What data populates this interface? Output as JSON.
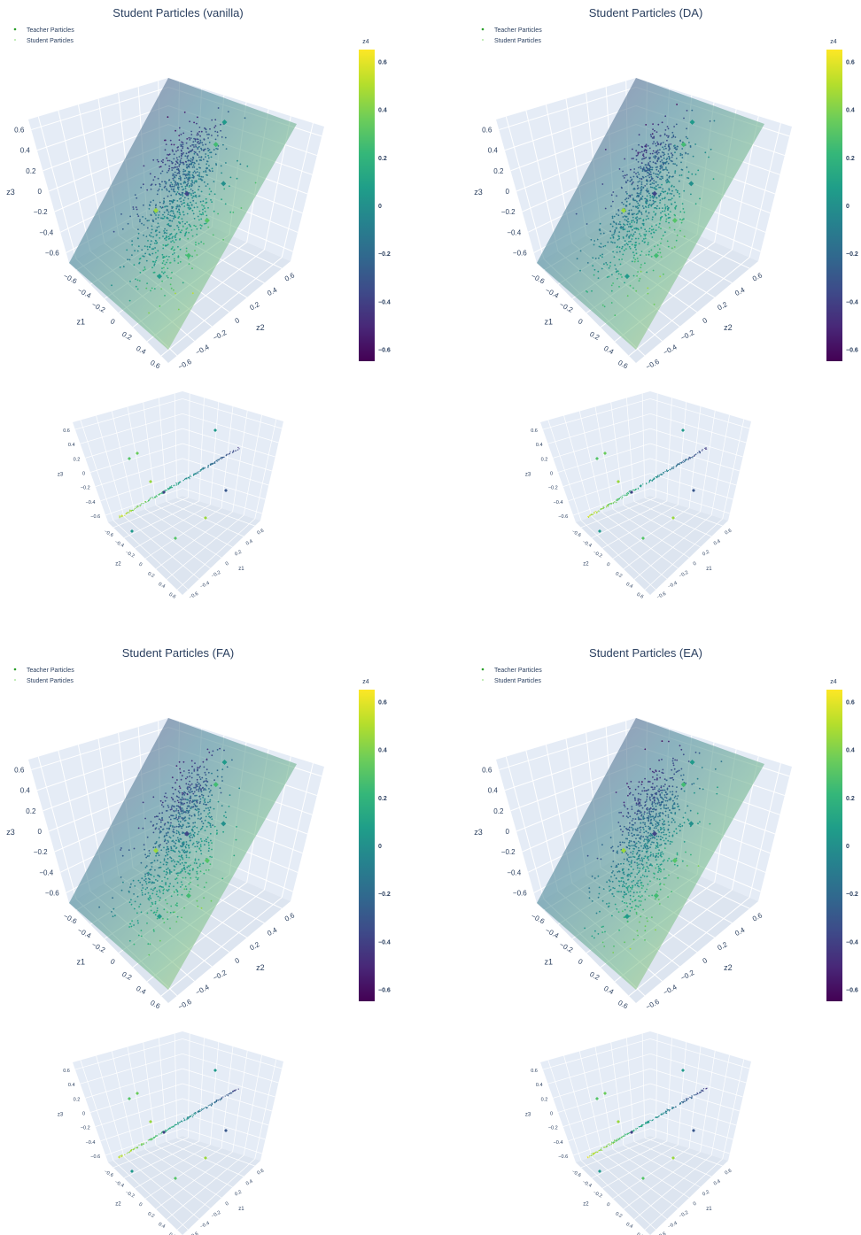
{
  "chart_data": [
    {
      "type": "scatter3d",
      "title": "Student Particles (vanilla)",
      "legend": {
        "placement": "top-left",
        "entries": [
          {
            "name": "Teacher Particles"
          },
          {
            "name": "Student Particles"
          }
        ]
      },
      "main_view": {
        "axes": [
          "z1",
          "z2",
          "z3"
        ],
        "ticks": [
          -0.6,
          -0.4,
          -0.2,
          0,
          0.2,
          0.4,
          0.6
        ],
        "range": [
          -0.6,
          0.6
        ]
      },
      "inset_view": {
        "axes": [
          "z2",
          "z1",
          "z3"
        ],
        "ticks": [
          -0.6,
          -0.4,
          -0.2,
          0,
          0.2,
          0.4,
          0.6
        ],
        "range": [
          -0.6,
          0.6
        ]
      },
      "colorbar": {
        "title": "z4",
        "ticks": [
          -0.6,
          -0.4,
          -0.2,
          0,
          0.2,
          0.4,
          0.6
        ],
        "range": [
          -0.65,
          0.65
        ],
        "colorscale": "viridis"
      },
      "teacher_particles": [
        {
          "z1": -0.28,
          "z2": 0.32,
          "z3": 0.58,
          "z4": 0.05
        },
        {
          "z1": 0.02,
          "z2": 0.55,
          "z3": 0.3,
          "z4": 0.0
        },
        {
          "z1": 0.18,
          "z2": 0.52,
          "z3": 0.05,
          "z4": 0.3
        },
        {
          "z1": -0.45,
          "z2": 0.1,
          "z3": 0.15,
          "z4": 0.25
        },
        {
          "z1": 0.15,
          "z2": 0.3,
          "z3": 0.2,
          "z4": -0.38
        },
        {
          "z1": -0.1,
          "z2": -0.2,
          "z3": -0.35,
          "z4": 0.45
        },
        {
          "z1": 0.42,
          "z2": 0.25,
          "z3": -0.42,
          "z4": 0.05
        },
        {
          "z1": 0.38,
          "z2": 0.5,
          "z3": -0.15,
          "z4": 0.25
        }
      ],
      "student_particle_count": 900,
      "plane": "z3 = z1 + z2"
    },
    {
      "type": "scatter3d",
      "title": "Student Particles (DA)",
      "legend": {
        "placement": "top-left",
        "entries": [
          {
            "name": "Teacher Particles"
          },
          {
            "name": "Student Particles"
          }
        ]
      },
      "main_view": {
        "axes": [
          "z1",
          "z2",
          "z3"
        ],
        "ticks": [
          -0.6,
          -0.4,
          -0.2,
          0,
          0.2,
          0.4,
          0.6
        ],
        "range": [
          -0.6,
          0.6
        ]
      },
      "inset_view": {
        "axes": [
          "z2",
          "z1",
          "z3"
        ],
        "ticks": [
          -0.6,
          -0.4,
          -0.2,
          0,
          0.2,
          0.4,
          0.6
        ],
        "range": [
          -0.6,
          0.6
        ]
      },
      "colorbar": {
        "title": "z4",
        "ticks": [
          -0.6,
          -0.4,
          -0.2,
          0,
          0.2,
          0.4,
          0.6
        ],
        "range": [
          -0.65,
          0.65
        ],
        "colorscale": "viridis"
      },
      "teacher_particles": [
        {
          "z1": -0.28,
          "z2": 0.32,
          "z3": 0.58,
          "z4": 0.05
        },
        {
          "z1": 0.02,
          "z2": 0.55,
          "z3": 0.3,
          "z4": 0.0
        },
        {
          "z1": 0.18,
          "z2": 0.52,
          "z3": 0.05,
          "z4": 0.3
        },
        {
          "z1": -0.45,
          "z2": 0.1,
          "z3": 0.15,
          "z4": 0.25
        },
        {
          "z1": 0.15,
          "z2": 0.3,
          "z3": 0.2,
          "z4": -0.38
        },
        {
          "z1": -0.1,
          "z2": -0.2,
          "z3": -0.35,
          "z4": 0.45
        },
        {
          "z1": 0.42,
          "z2": 0.25,
          "z3": -0.42,
          "z4": 0.05
        },
        {
          "z1": 0.38,
          "z2": 0.5,
          "z3": -0.15,
          "z4": 0.25
        }
      ],
      "student_particle_count": 900,
      "plane": "z3 = z1 + z2"
    },
    {
      "type": "scatter3d",
      "title": "Student Particles (FA)",
      "legend": {
        "placement": "top-left",
        "entries": [
          {
            "name": "Teacher Particles"
          },
          {
            "name": "Student Particles"
          }
        ]
      },
      "main_view": {
        "axes": [
          "z1",
          "z2",
          "z3"
        ],
        "ticks": [
          -0.6,
          -0.4,
          -0.2,
          0,
          0.2,
          0.4,
          0.6
        ],
        "range": [
          -0.6,
          0.6
        ]
      },
      "inset_view": {
        "axes": [
          "z2",
          "z1",
          "z3"
        ],
        "ticks": [
          -0.6,
          -0.4,
          -0.2,
          0,
          0.2,
          0.4,
          0.6
        ],
        "range": [
          -0.6,
          0.6
        ]
      },
      "colorbar": {
        "title": "z4",
        "ticks": [
          -0.6,
          -0.4,
          -0.2,
          0,
          0.2,
          0.4,
          0.6
        ],
        "range": [
          -0.65,
          0.65
        ],
        "colorscale": "viridis"
      },
      "teacher_particles": [
        {
          "z1": -0.28,
          "z2": 0.32,
          "z3": 0.58,
          "z4": 0.05
        },
        {
          "z1": 0.02,
          "z2": 0.55,
          "z3": 0.3,
          "z4": 0.0
        },
        {
          "z1": 0.18,
          "z2": 0.52,
          "z3": 0.05,
          "z4": 0.3
        },
        {
          "z1": -0.45,
          "z2": 0.1,
          "z3": 0.15,
          "z4": 0.25
        },
        {
          "z1": 0.15,
          "z2": 0.3,
          "z3": 0.2,
          "z4": -0.38
        },
        {
          "z1": -0.1,
          "z2": -0.2,
          "z3": -0.35,
          "z4": 0.45
        },
        {
          "z1": 0.42,
          "z2": 0.25,
          "z3": -0.42,
          "z4": 0.05
        },
        {
          "z1": 0.38,
          "z2": 0.5,
          "z3": -0.15,
          "z4": 0.25
        }
      ],
      "student_particle_count": 900,
      "plane": "z3 = z1 + z2"
    },
    {
      "type": "scatter3d",
      "title": "Student Particles (EA)",
      "legend": {
        "placement": "top-left",
        "entries": [
          {
            "name": "Teacher Particles"
          },
          {
            "name": "Student Particles"
          }
        ]
      },
      "main_view": {
        "axes": [
          "z1",
          "z2",
          "z3"
        ],
        "ticks": [
          -0.6,
          -0.4,
          -0.2,
          0,
          0.2,
          0.4,
          0.6
        ],
        "range": [
          -0.6,
          0.6
        ]
      },
      "inset_view": {
        "axes": [
          "z2",
          "z1",
          "z3"
        ],
        "ticks": [
          -0.6,
          -0.4,
          -0.2,
          0,
          0.2,
          0.4,
          0.6
        ],
        "range": [
          -0.6,
          0.6
        ]
      },
      "colorbar": {
        "title": "z4",
        "ticks": [
          -0.6,
          -0.4,
          -0.2,
          0,
          0.2,
          0.4,
          0.6
        ],
        "range": [
          -0.65,
          0.65
        ],
        "colorscale": "viridis"
      },
      "teacher_particles": [
        {
          "z1": -0.28,
          "z2": 0.32,
          "z3": 0.58,
          "z4": 0.05
        },
        {
          "z1": 0.02,
          "z2": 0.55,
          "z3": 0.3,
          "z4": 0.0
        },
        {
          "z1": 0.18,
          "z2": 0.52,
          "z3": 0.05,
          "z4": 0.3
        },
        {
          "z1": -0.45,
          "z2": 0.1,
          "z3": 0.15,
          "z4": 0.25
        },
        {
          "z1": 0.15,
          "z2": 0.3,
          "z3": 0.2,
          "z4": -0.38
        },
        {
          "z1": -0.1,
          "z2": -0.2,
          "z3": -0.35,
          "z4": 0.45
        },
        {
          "z1": 0.42,
          "z2": 0.25,
          "z3": -0.42,
          "z4": 0.05
        },
        {
          "z1": 0.38,
          "z2": 0.5,
          "z3": -0.15,
          "z4": 0.25
        }
      ],
      "student_particle_count": 900,
      "plane": "z3 = z1 + z2"
    }
  ],
  "style": {
    "background": "#ffffff",
    "scene_background": "#e5ecf6",
    "grid_color": "#ffffff",
    "text_color": "#2a3f5f",
    "teacher_color": "#2ca02c",
    "student_color": "#98df8a"
  }
}
